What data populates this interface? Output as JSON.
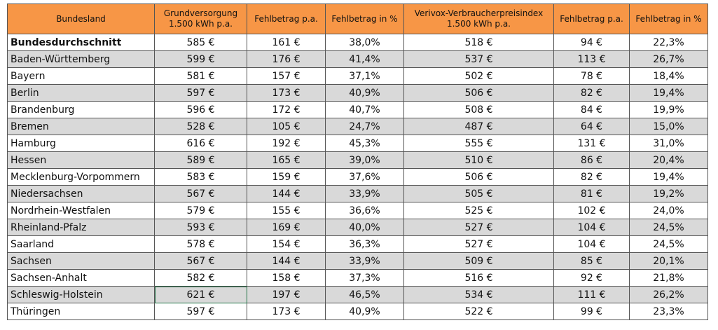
{
  "table": {
    "header": [
      "Bundesland",
      "Grundversorgung\n1.500 kWh p.a.",
      "Fehlbetrag  p.a.",
      "Fehlbetrag in %",
      "Verivox-Verbraucherpreisindex\n1.500 kWh p.a.",
      "Fehlbetrag p.a.",
      "Fehlbetrag in %"
    ],
    "rows": [
      [
        "Bundesdurchschnitt",
        "585 €",
        "161 €",
        "38,0%",
        "518 €",
        "94 €",
        "22,3%"
      ],
      [
        "Baden-Württemberg",
        "599 €",
        "176 €",
        "41,4%",
        "537 €",
        "113 €",
        "26,7%"
      ],
      [
        "Bayern",
        "581 €",
        "157 €",
        "37,1%",
        "502 €",
        "78 €",
        "18,4%"
      ],
      [
        "Berlin",
        "597 €",
        "173 €",
        "40,9%",
        "506 €",
        "82 €",
        "19,4%"
      ],
      [
        "Brandenburg",
        "596 €",
        "172 €",
        "40,7%",
        "508 €",
        "84 €",
        "19,9%"
      ],
      [
        "Bremen",
        "528 €",
        "105 €",
        "24,7%",
        "487 €",
        "64 €",
        "15,0%"
      ],
      [
        "Hamburg",
        "616 €",
        "192 €",
        "45,3%",
        "555 €",
        "131 €",
        "31,0%"
      ],
      [
        "Hessen",
        "589 €",
        "165 €",
        "39,0%",
        "510 €",
        "86 €",
        "20,4%"
      ],
      [
        "Mecklenburg-Vorpommern",
        "583 €",
        "159 €",
        "37,6%",
        "506 €",
        "82 €",
        "19,4%"
      ],
      [
        "Niedersachsen",
        "567 €",
        "144 €",
        "33,9%",
        "505 €",
        "81 €",
        "19,2%"
      ],
      [
        "Nordrhein-Westfalen",
        "579 €",
        "155 €",
        "36,6%",
        "525 €",
        "102 €",
        "24,0%"
      ],
      [
        "Rheinland-Pfalz",
        "593 €",
        "169 €",
        "40,0%",
        "527 €",
        "104 €",
        "24,5%"
      ],
      [
        "Saarland",
        "578 €",
        "154 €",
        "36,3%",
        "527 €",
        "104 €",
        "24,5%"
      ],
      [
        "Sachsen",
        "567 €",
        "144 €",
        "33,9%",
        "509 €",
        "85 €",
        "20,1%"
      ],
      [
        "Sachsen-Anhalt",
        "582 €",
        "158 €",
        "37,3%",
        "516 €",
        "92 €",
        "21,8%"
      ],
      [
        "Schleswig-Holstein",
        "621 €",
        "197 €",
        "46,5%",
        "534 €",
        "111 €",
        "26,2%"
      ],
      [
        "Thüringen",
        "597 €",
        "173 €",
        "40,9%",
        "522 €",
        "99 €",
        "23,3%"
      ]
    ]
  }
}
